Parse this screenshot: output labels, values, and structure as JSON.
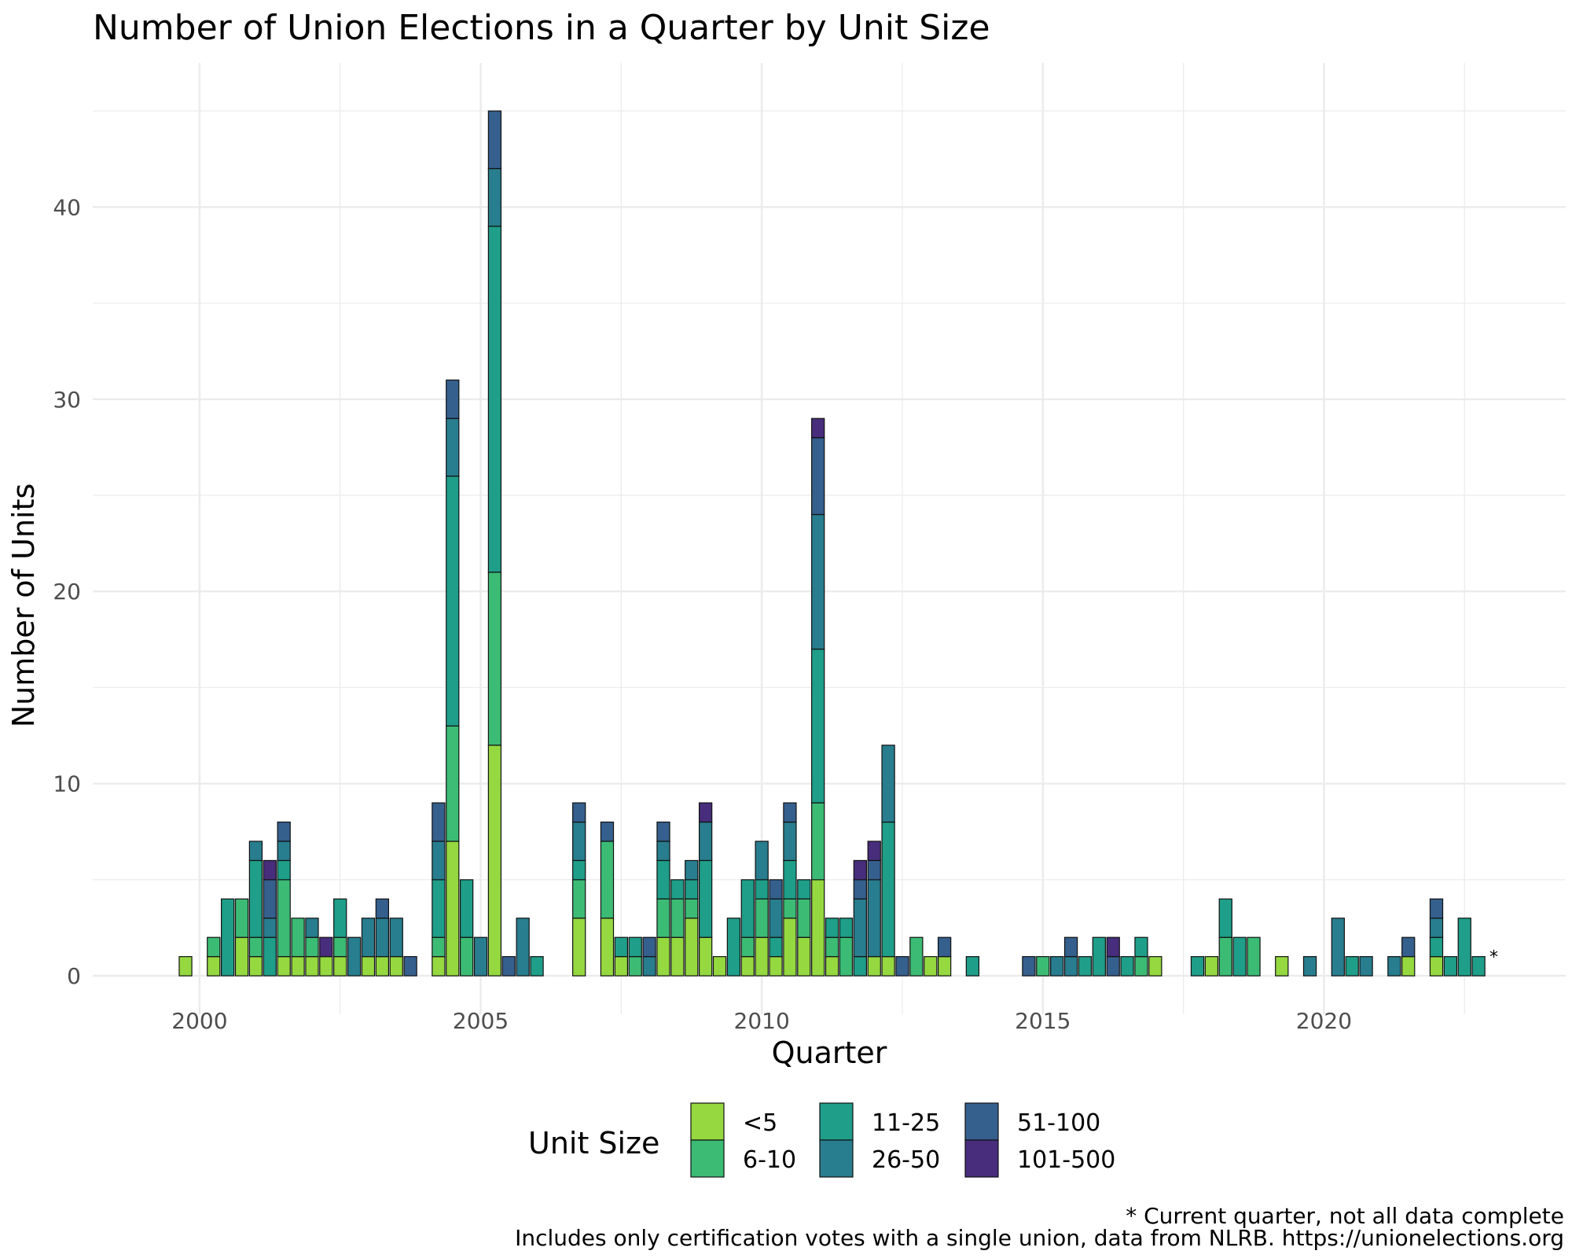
{
  "chart_data": {
    "type": "bar",
    "stacked": true,
    "title": "Number of Union Elections in a Quarter by Unit Size",
    "xlabel": "Quarter",
    "ylabel": "Number of Units",
    "x_range": [
      1998.1,
      2024.3
    ],
    "ylim": [
      -2,
      47.5
    ],
    "x_ticks": [
      2000,
      2005,
      2010,
      2015,
      2020
    ],
    "y_ticks": [
      0,
      10,
      20,
      30,
      40
    ],
    "legend_title": "Unit Size",
    "legend_position": "bottom",
    "categories_order": [
      "<5",
      "6-10",
      "11-25",
      "26-50",
      "51-100",
      "101-500"
    ],
    "colors": {
      "<5": "#95d840",
      "6-10": "#3cbb75",
      "11-25": "#1f9e89",
      "26-50": "#287d8e",
      "51-100": "#355f8d",
      "101-500": "#472d7b"
    },
    "series": [
      {
        "name": "<5",
        "points": [
          [
            1999.75,
            1
          ],
          [
            2000.25,
            1
          ],
          [
            2000.75,
            2
          ],
          [
            2001.0,
            1
          ],
          [
            2001.5,
            1
          ],
          [
            2001.75,
            1
          ],
          [
            2002.0,
            1
          ],
          [
            2002.25,
            1
          ],
          [
            2002.5,
            1
          ],
          [
            2003.0,
            1
          ],
          [
            2003.25,
            1
          ],
          [
            2003.5,
            1
          ],
          [
            2004.25,
            1
          ],
          [
            2004.5,
            7
          ],
          [
            2005.25,
            12
          ],
          [
            2006.75,
            3
          ],
          [
            2007.25,
            3
          ],
          [
            2007.5,
            1
          ],
          [
            2008.25,
            2
          ],
          [
            2008.5,
            2
          ],
          [
            2008.75,
            3
          ],
          [
            2009.0,
            2
          ],
          [
            2009.25,
            1
          ],
          [
            2009.75,
            1
          ],
          [
            2010.0,
            2
          ],
          [
            2010.25,
            1
          ],
          [
            2010.5,
            3
          ],
          [
            2010.75,
            2
          ],
          [
            2011.0,
            5
          ],
          [
            2011.25,
            1
          ],
          [
            2012.0,
            1
          ],
          [
            2012.25,
            1
          ],
          [
            2013.0,
            1
          ],
          [
            2013.25,
            1
          ],
          [
            2017.0,
            1
          ],
          [
            2018.0,
            1
          ],
          [
            2019.25,
            1
          ],
          [
            2021.5,
            1
          ],
          [
            2022.0,
            1
          ]
        ]
      },
      {
        "name": "6-10",
        "points": [
          [
            2000.25,
            1
          ],
          [
            2000.75,
            2
          ],
          [
            2001.0,
            1
          ],
          [
            2001.5,
            4
          ],
          [
            2001.75,
            2
          ],
          [
            2002.0,
            1
          ],
          [
            2002.5,
            1
          ],
          [
            2004.25,
            1
          ],
          [
            2004.5,
            6
          ],
          [
            2004.75,
            2
          ],
          [
            2005.25,
            9
          ],
          [
            2006.75,
            2
          ],
          [
            2007.25,
            4
          ],
          [
            2007.75,
            1
          ],
          [
            2008.25,
            2
          ],
          [
            2008.5,
            2
          ],
          [
            2008.75,
            1
          ],
          [
            2009.75,
            1
          ],
          [
            2010.0,
            2
          ],
          [
            2010.5,
            1
          ],
          [
            2010.75,
            2
          ],
          [
            2011.0,
            4
          ],
          [
            2011.25,
            1
          ],
          [
            2011.5,
            2
          ],
          [
            2012.75,
            2
          ],
          [
            2015.0,
            1
          ],
          [
            2016.75,
            1
          ],
          [
            2018.25,
            2
          ],
          [
            2018.75,
            2
          ]
        ]
      },
      {
        "name": "11-25",
        "points": [
          [
            2000.5,
            4
          ],
          [
            2001.0,
            4
          ],
          [
            2001.25,
            2
          ],
          [
            2001.5,
            1
          ],
          [
            2002.5,
            2
          ],
          [
            2004.25,
            3
          ],
          [
            2004.5,
            13
          ],
          [
            2004.75,
            3
          ],
          [
            2005.25,
            18
          ],
          [
            2006.0,
            1
          ],
          [
            2006.75,
            1
          ],
          [
            2007.5,
            1
          ],
          [
            2007.75,
            1
          ],
          [
            2008.25,
            2
          ],
          [
            2008.5,
            1
          ],
          [
            2008.75,
            1
          ],
          [
            2009.0,
            4
          ],
          [
            2009.5,
            3
          ],
          [
            2009.75,
            3
          ],
          [
            2010.0,
            1
          ],
          [
            2010.25,
            1
          ],
          [
            2010.5,
            2
          ],
          [
            2010.75,
            1
          ],
          [
            2011.0,
            8
          ],
          [
            2011.25,
            1
          ],
          [
            2011.5,
            1
          ],
          [
            2011.75,
            1
          ],
          [
            2012.25,
            7
          ],
          [
            2013.75,
            1
          ],
          [
            2015.75,
            1
          ],
          [
            2016.0,
            2
          ],
          [
            2016.5,
            1
          ],
          [
            2016.75,
            1
          ],
          [
            2017.75,
            1
          ],
          [
            2018.25,
            2
          ],
          [
            2018.5,
            2
          ],
          [
            2020.5,
            1
          ],
          [
            2022.0,
            1
          ],
          [
            2022.25,
            1
          ],
          [
            2022.5,
            3
          ],
          [
            2022.75,
            1
          ]
        ]
      },
      {
        "name": "26-50",
        "points": [
          [
            2001.0,
            1
          ],
          [
            2001.25,
            1
          ],
          [
            2001.5,
            1
          ],
          [
            2002.0,
            1
          ],
          [
            2002.75,
            2
          ],
          [
            2003.0,
            2
          ],
          [
            2003.25,
            2
          ],
          [
            2003.5,
            2
          ],
          [
            2004.25,
            2
          ],
          [
            2004.5,
            3
          ],
          [
            2005.0,
            2
          ],
          [
            2005.25,
            3
          ],
          [
            2005.75,
            3
          ],
          [
            2006.75,
            2
          ],
          [
            2008.0,
            1
          ],
          [
            2008.25,
            1
          ],
          [
            2008.75,
            1
          ],
          [
            2009.0,
            2
          ],
          [
            2010.0,
            2
          ],
          [
            2010.25,
            2
          ],
          [
            2010.5,
            2
          ],
          [
            2011.0,
            7
          ],
          [
            2011.75,
            3
          ],
          [
            2012.0,
            4
          ],
          [
            2012.25,
            4
          ],
          [
            2015.25,
            1
          ],
          [
            2015.5,
            1
          ],
          [
            2019.75,
            1
          ],
          [
            2020.25,
            3
          ],
          [
            2020.75,
            1
          ],
          [
            2021.25,
            1
          ],
          [
            2022.0,
            1
          ]
        ]
      },
      {
        "name": "51-100",
        "points": [
          [
            2001.25,
            2
          ],
          [
            2001.5,
            1
          ],
          [
            2003.25,
            1
          ],
          [
            2003.75,
            1
          ],
          [
            2004.25,
            2
          ],
          [
            2004.5,
            2
          ],
          [
            2005.25,
            3
          ],
          [
            2005.5,
            1
          ],
          [
            2006.75,
            1
          ],
          [
            2007.25,
            1
          ],
          [
            2008.0,
            1
          ],
          [
            2008.25,
            1
          ],
          [
            2010.25,
            1
          ],
          [
            2010.5,
            1
          ],
          [
            2011.0,
            4
          ],
          [
            2011.75,
            1
          ],
          [
            2012.0,
            1
          ],
          [
            2012.5,
            1
          ],
          [
            2013.25,
            1
          ],
          [
            2014.75,
            1
          ],
          [
            2015.5,
            1
          ],
          [
            2016.25,
            1
          ],
          [
            2021.5,
            1
          ],
          [
            2022.0,
            1
          ]
        ]
      },
      {
        "name": "101-500",
        "points": [
          [
            2001.25,
            1
          ],
          [
            2002.25,
            1
          ],
          [
            2009.0,
            1
          ],
          [
            2011.0,
            1
          ],
          [
            2011.75,
            1
          ],
          [
            2012.0,
            1
          ],
          [
            2016.25,
            1
          ]
        ]
      }
    ],
    "annotation": {
      "text": "*",
      "x": 2023.0,
      "y": 1
    }
  },
  "captions": {
    "line1": "* Current quarter, not all data complete",
    "line2": "Includes only certification votes with a single union, data from NLRB. https://unionelections.org"
  }
}
